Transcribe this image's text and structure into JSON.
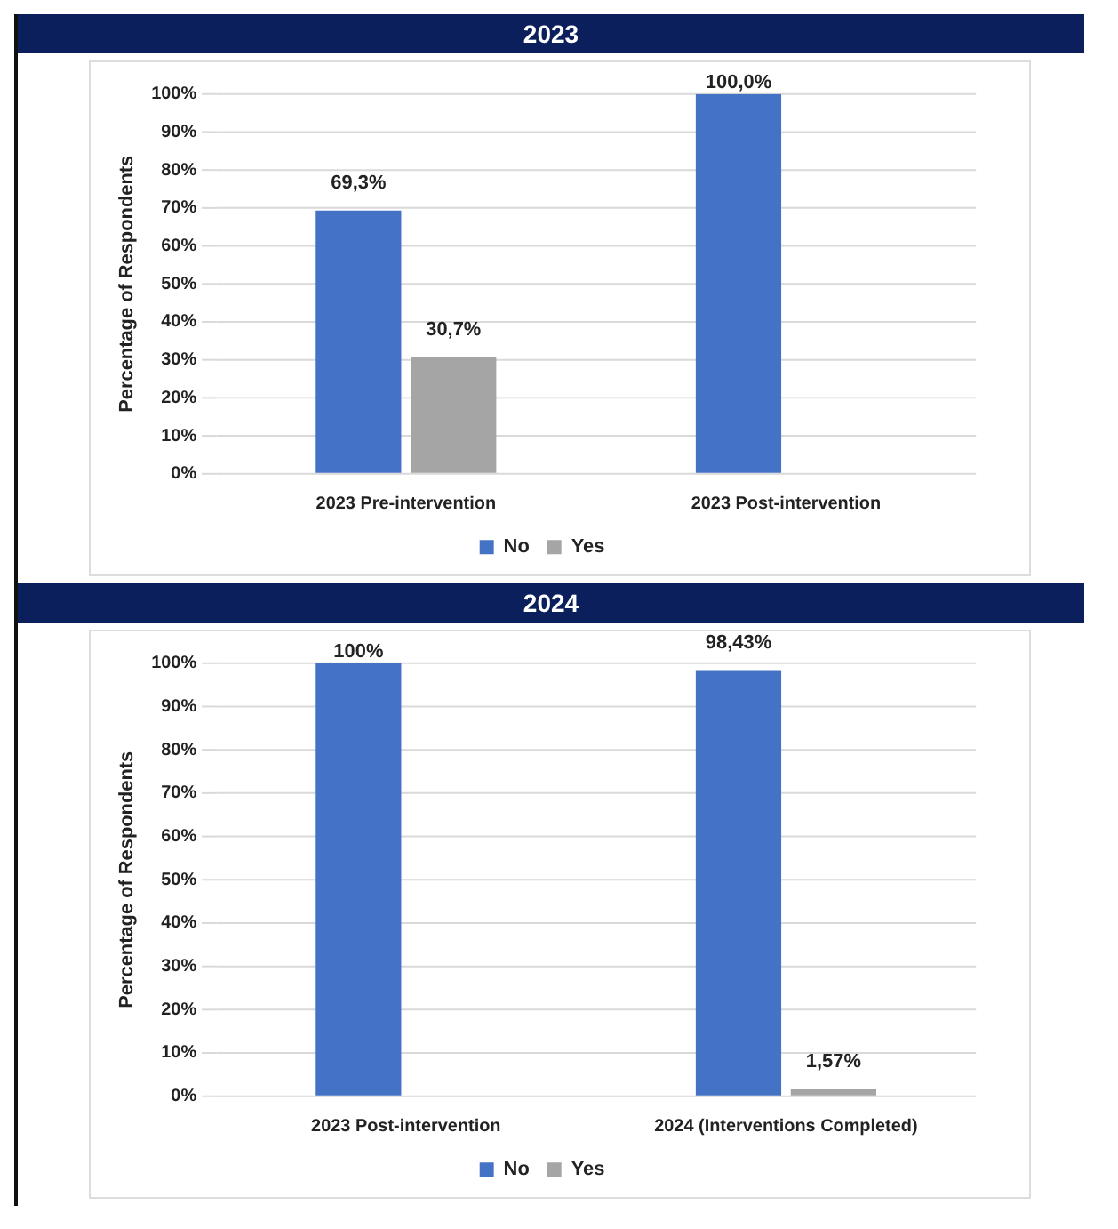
{
  "chart_data": [
    {
      "type": "bar",
      "title": "2023",
      "ylabel": "Percentage of Respondents",
      "categories": [
        "2023 Pre-intervention",
        "2023 Post-intervention"
      ],
      "series": [
        {
          "name": "No",
          "color": "#4472c4",
          "values": [
            69.3,
            100
          ],
          "value_labels": [
            "69,3%",
            "100,0%"
          ]
        },
        {
          "name": "Yes",
          "color": "#a5a5a5",
          "values": [
            30.7,
            null
          ],
          "value_labels": [
            "30,7%",
            null
          ]
        }
      ],
      "ylim": [
        0,
        100
      ],
      "yticks": [
        {
          "value": 0,
          "label": "0%"
        },
        {
          "value": 10,
          "label": "10%"
        },
        {
          "value": 20,
          "label": "20%"
        },
        {
          "value": 30,
          "label": "30%"
        },
        {
          "value": 40,
          "label": "40%"
        },
        {
          "value": 50,
          "label": "50%"
        },
        {
          "value": 60,
          "label": "60%"
        },
        {
          "value": 70,
          "label": "70%"
        },
        {
          "value": 80,
          "label": "80%"
        },
        {
          "value": 90,
          "label": "90%"
        },
        {
          "value": 100,
          "label": "100%"
        }
      ],
      "grid": "y",
      "legend": "bottom"
    },
    {
      "type": "bar",
      "title": "2024",
      "ylabel": "Percentage of Respondents",
      "categories": [
        "2023 Post-intervention",
        "2024 (Interventions Completed)"
      ],
      "series": [
        {
          "name": "No",
          "color": "#4472c4",
          "values": [
            100,
            98.43
          ],
          "value_labels": [
            "100%",
            "98,43%"
          ]
        },
        {
          "name": "Yes",
          "color": "#a5a5a5",
          "values": [
            null,
            1.57
          ],
          "value_labels": [
            null,
            "1,57%"
          ]
        }
      ],
      "ylim": [
        0,
        100
      ],
      "yticks": [
        {
          "value": 0,
          "label": "0%"
        },
        {
          "value": 10,
          "label": "10%"
        },
        {
          "value": 20,
          "label": "20%"
        },
        {
          "value": 30,
          "label": "30%"
        },
        {
          "value": 40,
          "label": "40%"
        },
        {
          "value": 50,
          "label": "50%"
        },
        {
          "value": 60,
          "label": "60%"
        },
        {
          "value": 70,
          "label": "70%"
        },
        {
          "value": 80,
          "label": "80%"
        },
        {
          "value": 90,
          "label": "90%"
        },
        {
          "value": 100,
          "label": "100%"
        }
      ],
      "grid": "y",
      "legend": "bottom"
    }
  ]
}
